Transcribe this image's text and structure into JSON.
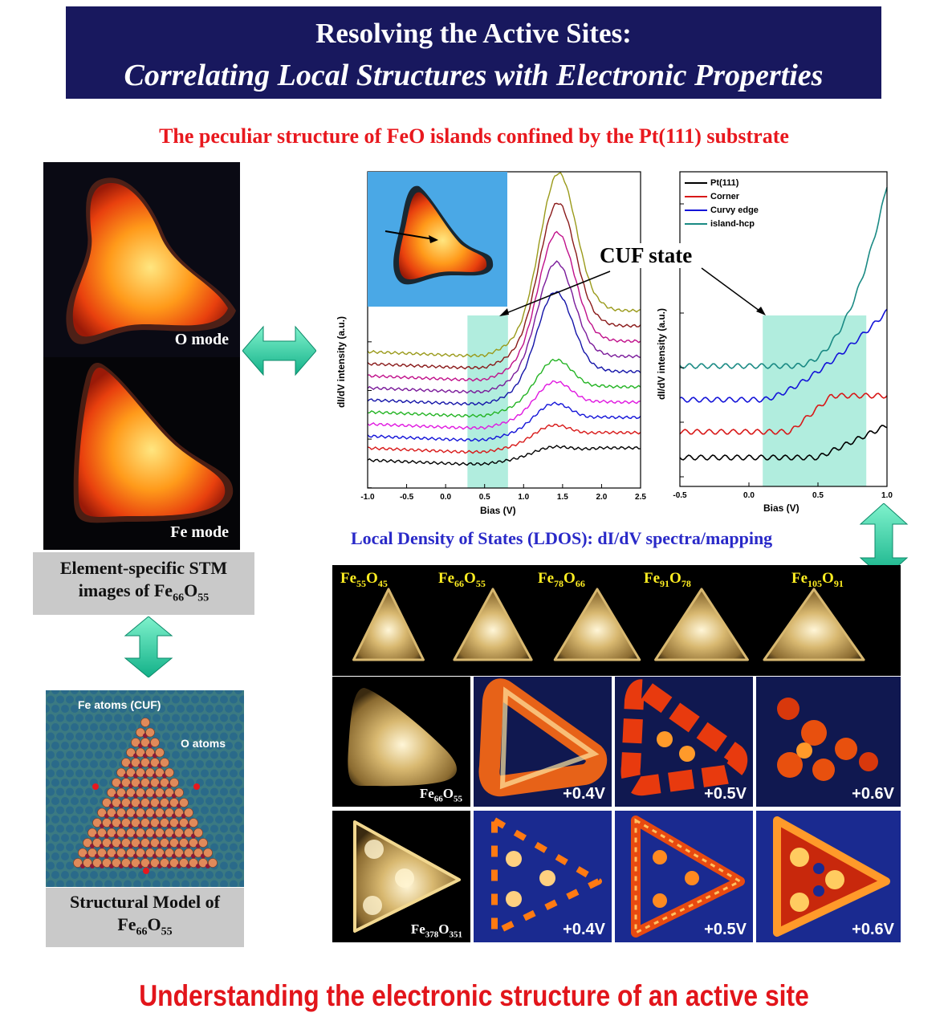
{
  "header": {
    "line1": "Resolving the Active Sites:",
    "line2": "Correlating Local Structures with Electronic Properties"
  },
  "subtitle": "The peculiar structure of FeO islands confined by the Pt(111) substrate",
  "left": {
    "o_mode": "O mode",
    "fe_mode": "Fe mode",
    "stm_caption_1": "Element-specific STM",
    "stm_caption_2": "images of Fe",
    "stm_sub1": "66",
    "stm_O": "O",
    "stm_sub2": "55",
    "model_caption_1": "Structural Model of",
    "model_fe": "Fe",
    "model_sub1": "66",
    "model_O": "O",
    "model_sub2": "55",
    "fe_atoms_label": "Fe atoms (CUF)",
    "o_atoms_label": "O atoms"
  },
  "cuf_label": "CUF state",
  "ldos_title": "Local Density of States (LDOS): dI/dV spectra/mapping",
  "chart_data": [
    {
      "type": "line",
      "xlabel": "Bias (V)",
      "ylabel": "dI/dV intensity (a.u.)",
      "xlim": [
        -1.0,
        2.5
      ],
      "xticks": [
        "-1.0",
        "-0.5",
        "0.0",
        "0.5",
        "1.0",
        "1.5",
        "2.0",
        "2.5"
      ],
      "highlight_band": [
        0.28,
        0.8
      ],
      "series_colors": [
        "#000000",
        "#d81818",
        "#1414d8",
        "#e018e0",
        "#24b424",
        "#1414a8",
        "#7a1a9a",
        "#c0108a",
        "#8a1a1a",
        "#9a9a1a"
      ]
    },
    {
      "type": "line",
      "xlabel": "Bias (V)",
      "ylabel": "dI/dV intensity (a.u.)",
      "xlim": [
        -0.5,
        1.0
      ],
      "xticks": [
        "-0.5",
        "0.0",
        "0.5",
        "1.0"
      ],
      "highlight_band": [
        0.1,
        0.85
      ],
      "series": [
        {
          "name": "Pt(111)",
          "color": "#000000"
        },
        {
          "name": "Corner",
          "color": "#d81818"
        },
        {
          "name": "Curvy edge",
          "color": "#1414d8"
        },
        {
          "name": "island-hcp",
          "color": "#1a8a84"
        }
      ]
    }
  ],
  "grid": {
    "top_labels": [
      {
        "fe": "Fe",
        "n1": "55",
        "o": "O",
        "n2": "45"
      },
      {
        "fe": "Fe",
        "n1": "66",
        "o": "O",
        "n2": "55"
      },
      {
        "fe": "Fe",
        "n1": "78",
        "o": "O",
        "n2": "66"
      },
      {
        "fe": "Fe",
        "n1": "91",
        "o": "O",
        "n2": "78"
      },
      {
        "fe": "Fe",
        "n1": "105",
        "o": "O",
        "n2": "91"
      }
    ],
    "row2_label": {
      "fe": "Fe",
      "n1": "66",
      "o": "O",
      "n2": "55"
    },
    "row3_label": {
      "fe": "Fe",
      "n1": "378",
      "o": "O",
      "n2": "351"
    },
    "voltages": [
      "+0.4V",
      "+0.5V",
      "+0.6V"
    ]
  },
  "bottom_title": "Understanding the electronic structure of an active site",
  "colors": {
    "header_bg": "#18185e",
    "red_title": "#e8181e",
    "ldos_blue": "#2929c8",
    "arrow_teal": "#22c79a",
    "band": "#9ee8d6"
  }
}
